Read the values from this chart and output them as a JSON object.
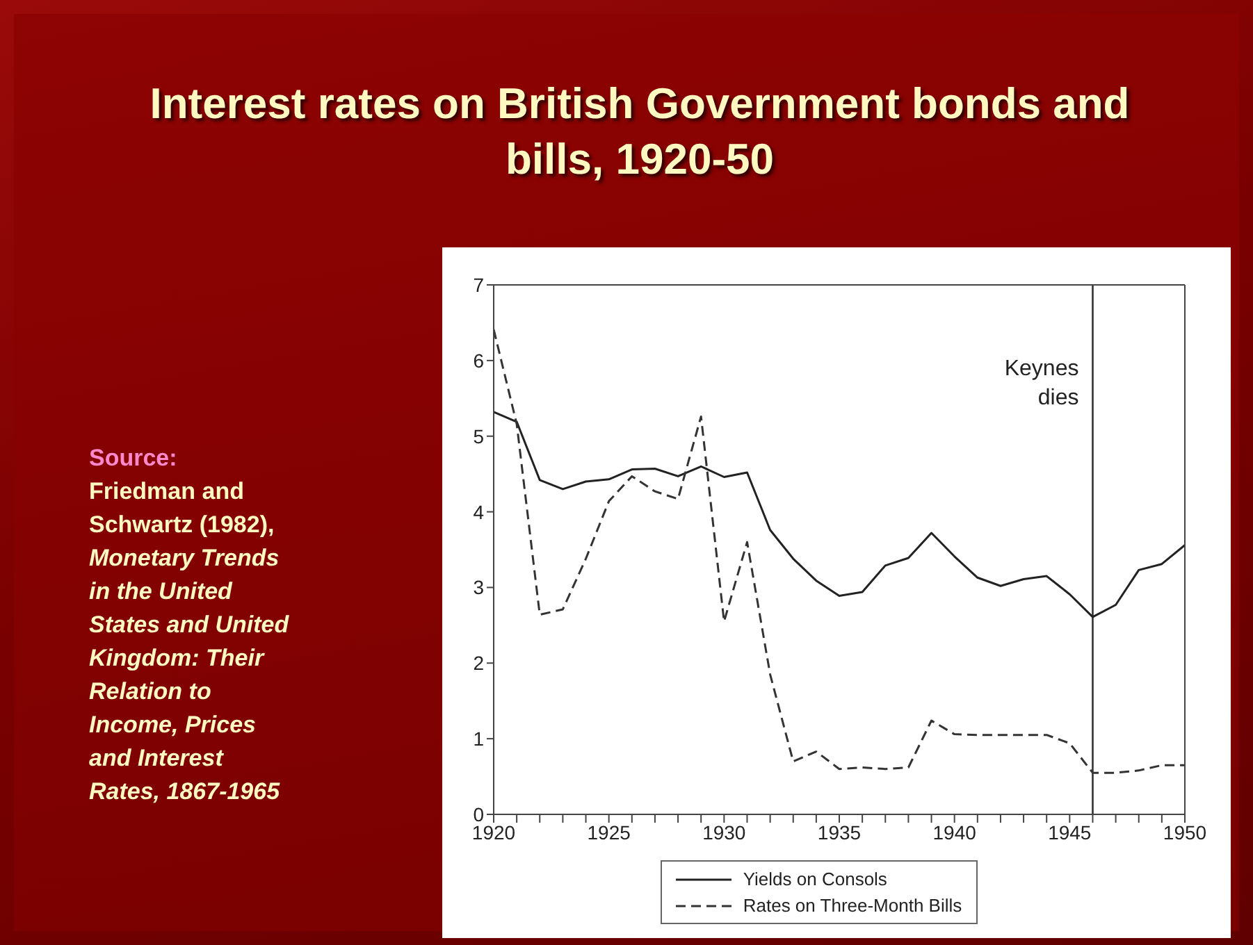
{
  "chart_data": {
    "type": "line",
    "title": "Interest rates on British Government bonds and bills, 1920-50",
    "annotations": [
      "Source:",
      "Friedman and Schwartz (1982),",
      "Monetary Trends in the United States and United Kingdom: Their Relation to Income, Prices and Interest Rates, 1867-1965"
    ],
    "x": [
      1920,
      1921,
      1922,
      1923,
      1924,
      1925,
      1926,
      1927,
      1928,
      1929,
      1930,
      1931,
      1932,
      1933,
      1934,
      1935,
      1936,
      1937,
      1938,
      1939,
      1940,
      1941,
      1942,
      1943,
      1944,
      1945,
      1946,
      1947,
      1948,
      1949,
      1950
    ],
    "series": [
      {
        "name": "Yields on Consols",
        "color": "#222222",
        "line_style": "solid",
        "values": [
          5.32,
          5.19,
          4.42,
          4.3,
          4.4,
          4.43,
          4.56,
          4.57,
          4.47,
          4.6,
          4.46,
          4.52,
          3.76,
          3.38,
          3.09,
          2.89,
          2.94,
          3.29,
          3.39,
          3.72,
          3.41,
          3.13,
          3.02,
          3.11,
          3.15,
          2.91,
          2.61,
          2.77,
          3.23,
          3.31,
          3.56
        ]
      },
      {
        "name": "Rates on Three-Month Bills",
        "color": "#333333",
        "line_style": "dashed",
        "values": [
          6.41,
          5.16,
          2.64,
          2.71,
          3.38,
          4.14,
          4.47,
          4.27,
          4.17,
          5.26,
          2.55,
          3.6,
          1.85,
          0.7,
          0.83,
          0.6,
          0.62,
          0.6,
          0.62,
          1.24,
          1.06,
          1.05,
          1.05,
          1.05,
          1.05,
          0.94,
          0.55,
          0.55,
          0.58,
          0.65,
          0.65
        ]
      }
    ],
    "xlim": [
      1920,
      1950
    ],
    "xticks": [
      1920,
      {
        "value": 1921,
        "label": null
      },
      {
        "value": 1922,
        "label": null
      },
      {
        "value": 1923,
        "label": null
      },
      {
        "value": 1924,
        "label": null
      },
      1925,
      {
        "value": 1926,
        "label": null
      },
      {
        "value": 1927,
        "label": null
      },
      {
        "value": 1928,
        "label": null
      },
      {
        "value": 1929,
        "label": null
      },
      1930,
      {
        "value": 1931,
        "label": null
      },
      {
        "value": 1932,
        "label": null
      },
      {
        "value": 1933,
        "label": null
      },
      {
        "value": 1934,
        "label": null
      },
      1935,
      {
        "value": 1936,
        "label": null
      },
      {
        "value": 1937,
        "label": null
      },
      {
        "value": 1938,
        "label": null
      },
      {
        "value": 1939,
        "label": null
      },
      1940,
      {
        "value": 1941,
        "label": null
      },
      {
        "value": 1942,
        "label": null
      },
      {
        "value": 1943,
        "label": null
      },
      {
        "value": 1944,
        "label": null
      },
      1945,
      {
        "value": 1946,
        "label": null
      },
      {
        "value": 1947,
        "label": null
      },
      {
        "value": 1948,
        "label": null
      },
      {
        "value": 1949,
        "label": null
      },
      1950
    ],
    "ylim": [
      0,
      7
    ],
    "yticks": [
      0,
      1,
      2,
      3,
      4,
      5,
      6,
      7
    ],
    "ref_lines": [
      {
        "axis": "x",
        "value": 1946,
        "label": "Keynes dies",
        "color": "#333333"
      }
    ],
    "legend": "bottom",
    "marker": "none"
  }
}
